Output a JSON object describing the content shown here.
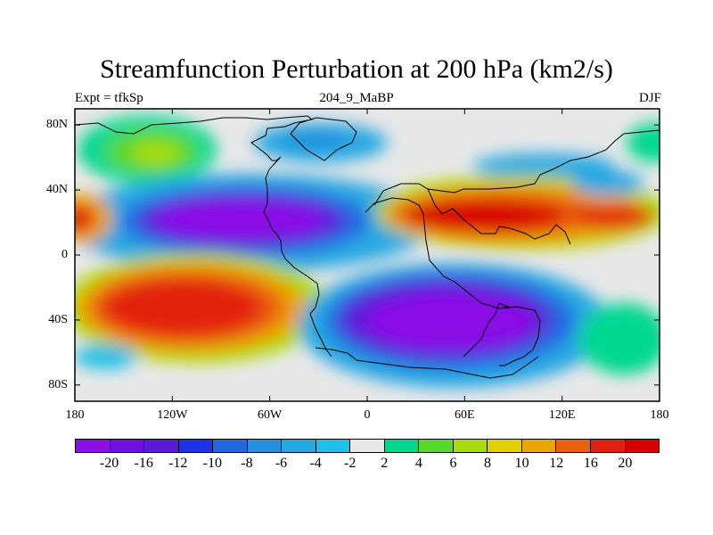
{
  "title": "Streamfunction Perturbation at 200 hPa (km2/s)",
  "left_subtitle": "Expt = tfkSp",
  "center_subtitle": "204_9_MaBP",
  "right_subtitle": "DJF",
  "lat_ticks": [
    {
      "value": 80,
      "label": "80N"
    },
    {
      "value": 40,
      "label": "40N"
    },
    {
      "value": 0,
      "label": "0"
    },
    {
      "value": -40,
      "label": "40S"
    },
    {
      "value": -80,
      "label": "80S"
    }
  ],
  "lon_ticks": [
    {
      "value": -180,
      "label": "180"
    },
    {
      "value": -120,
      "label": "120W"
    },
    {
      "value": -60,
      "label": "60W"
    },
    {
      "value": 0,
      "label": "0"
    },
    {
      "value": 60,
      "label": "60E"
    },
    {
      "value": 120,
      "label": "120E"
    },
    {
      "value": 180,
      "label": "180"
    }
  ],
  "colorbar": {
    "labels": [
      "-20",
      "-16",
      "-12",
      "-10",
      "-8",
      "-6",
      "-4",
      "-2",
      "2",
      "4",
      "6",
      "8",
      "10",
      "12",
      "16",
      "20"
    ],
    "colors": [
      "#8a0ee6",
      "#7010e0",
      "#5a1ad8",
      "#1f32e6",
      "#2268e0",
      "#2290dc",
      "#26a8e2",
      "#1cc0e8",
      "#e8e8e8",
      "#00d890",
      "#58d828",
      "#a8dc10",
      "#e0d000",
      "#eaa600",
      "#ea6010",
      "#e22010",
      "#d80000"
    ]
  },
  "chart_data": {
    "type": "heatmap",
    "title": "Streamfunction Perturbation at 200 hPa (km2/s)",
    "variable": "Streamfunction Perturbation",
    "level": "200 hPa",
    "units": "km2/s",
    "season": "DJF",
    "experiment": "tfkSp",
    "case": "204_9_MaBP",
    "lon_range": [
      -180,
      180
    ],
    "lat_range": [
      -90,
      90
    ],
    "contour_levels": [
      -20,
      -16,
      -12,
      -10,
      -8,
      -6,
      -4,
      -2,
      2,
      4,
      6,
      8,
      10,
      12,
      16,
      20
    ],
    "features": [
      {
        "lon": -160,
        "lat": 70,
        "value": 8
      },
      {
        "lon": -85,
        "lat": 25,
        "value": -18
      },
      {
        "lon": -100,
        "lat": -35,
        "value": 20
      },
      {
        "lon": 70,
        "lat": 22,
        "value": 20
      },
      {
        "lon": 165,
        "lat": 25,
        "value": 16
      },
      {
        "lon": -175,
        "lat": 22,
        "value": 16
      },
      {
        "lon": 55,
        "lat": -42,
        "value": -20
      },
      {
        "lon": -40,
        "lat": 68,
        "value": -4
      },
      {
        "lon": 170,
        "lat": 70,
        "value": 6
      },
      {
        "lon": 140,
        "lat": -62,
        "value": 6
      }
    ]
  }
}
